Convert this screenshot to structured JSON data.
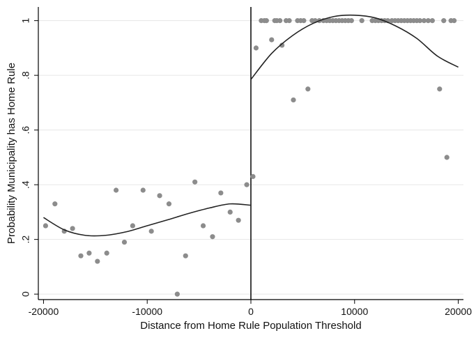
{
  "chart_data": {
    "type": "scatter",
    "title": "",
    "xlabel": "Distance from Home Rule Population Threshold",
    "ylabel": "Probability Municipality has Home Rule",
    "xlim": [
      -20500,
      20500
    ],
    "ylim": [
      -0.02,
      1.05
    ],
    "xticks": [
      -20000,
      -10000,
      0,
      10000,
      20000
    ],
    "xtick_labels": [
      "-20000",
      "-10000",
      "0",
      "10000",
      "20000"
    ],
    "yticks": [
      0,
      0.2,
      0.4,
      0.6,
      0.8,
      1
    ],
    "ytick_labels": [
      "0",
      ".2",
      ".4",
      ".6",
      ".8",
      "1"
    ],
    "grid": true,
    "threshold_line_x": 0,
    "colors": {
      "points": "#8c8c8c",
      "fit": "#222222",
      "grid": "#e6e6e6",
      "axis": "#000000"
    },
    "series": [
      {
        "kind": "points",
        "x": [
          -19800,
          -18900,
          -18000,
          -17200,
          -16400,
          -15600,
          -14800,
          -13900,
          -13000,
          -12200,
          -11400,
          -10400,
          -9600,
          -8800,
          -7900,
          -7100,
          -6300,
          -5400,
          -4600,
          -3700,
          -2900,
          -2000,
          -1200,
          -400,
          200,
          500,
          1000,
          1300,
          1500,
          2000,
          2300,
          2500,
          2800,
          3000,
          3400,
          3700,
          4100,
          4500,
          4800,
          5100,
          5500,
          5900,
          6200,
          6600,
          7000,
          7300,
          7600,
          7900,
          8200,
          8500,
          8800,
          9100,
          9400,
          9700,
          10700,
          11700,
          12000,
          12300,
          12600,
          12900,
          13200,
          13600,
          13900,
          14200,
          14500,
          14800,
          15100,
          15400,
          15700,
          16000,
          16300,
          16700,
          17100,
          17500,
          18200,
          18600,
          18900,
          19300,
          19600
        ],
        "y": [
          0.25,
          0.33,
          0.23,
          0.24,
          0.14,
          0.15,
          0.12,
          0.15,
          0.38,
          0.19,
          0.25,
          0.38,
          0.23,
          0.36,
          0.33,
          0.0,
          0.14,
          0.41,
          0.25,
          0.21,
          0.37,
          0.3,
          0.27,
          0.4,
          0.43,
          0.9,
          1.0,
          1.0,
          1.0,
          0.93,
          1.0,
          1.0,
          1.0,
          0.91,
          1.0,
          1.0,
          0.71,
          1.0,
          1.0,
          1.0,
          0.75,
          1.0,
          1.0,
          1.0,
          1.0,
          1.0,
          1.0,
          1.0,
          1.0,
          1.0,
          1.0,
          1.0,
          1.0,
          1.0,
          1.0,
          1.0,
          1.0,
          1.0,
          1.0,
          1.0,
          1.0,
          1.0,
          1.0,
          1.0,
          1.0,
          1.0,
          1.0,
          1.0,
          1.0,
          1.0,
          1.0,
          1.0,
          1.0,
          1.0,
          0.75,
          1.0,
          0.5,
          1.0,
          1.0
        ]
      },
      {
        "kind": "fit-left",
        "x": [
          -20000,
          -18000,
          -16000,
          -14000,
          -12000,
          -10000,
          -8000,
          -6000,
          -4000,
          -2000,
          0
        ],
        "y": [
          0.28,
          0.235,
          0.215,
          0.215,
          0.228,
          0.25,
          0.272,
          0.295,
          0.315,
          0.33,
          0.325
        ]
      },
      {
        "kind": "fit-right",
        "x": [
          0,
          2000,
          4000,
          6000,
          8000,
          10000,
          12000,
          14000,
          16000,
          18000,
          20000
        ],
        "y": [
          0.785,
          0.88,
          0.945,
          0.99,
          1.015,
          1.02,
          1.01,
          0.98,
          0.935,
          0.87,
          0.83
        ]
      }
    ]
  }
}
